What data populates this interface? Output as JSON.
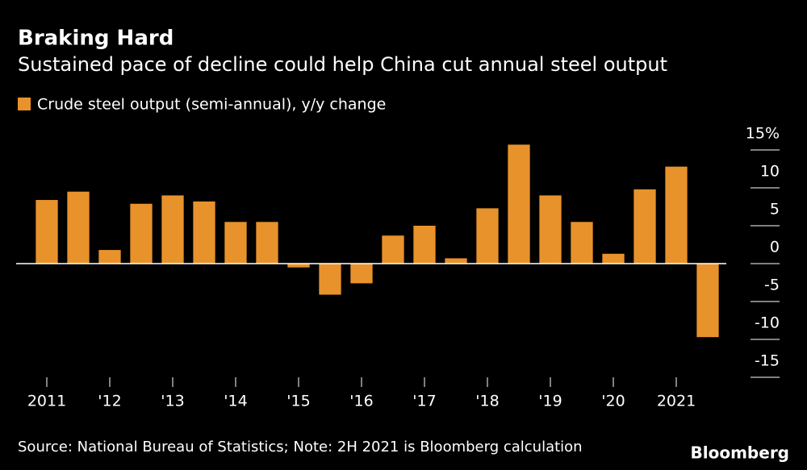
{
  "chart_data": {
    "type": "bar",
    "title": "Braking Hard",
    "subtitle": "Sustained pace of decline could help China cut annual steel output",
    "categories": [
      "2011",
      null,
      "'12",
      null,
      "'13",
      null,
      "'14",
      null,
      "'15",
      null,
      "'16",
      null,
      "'17",
      null,
      "'18",
      null,
      "'19",
      null,
      "'20",
      null,
      "2021",
      null
    ],
    "series": [
      {
        "name": "Crude steel output (semi-annual), y/y change",
        "color": "#e8922b",
        "values": [
          8.4,
          9.5,
          1.8,
          7.9,
          9.0,
          8.2,
          5.5,
          5.5,
          -0.5,
          -4.1,
          -2.6,
          3.7,
          5.0,
          0.7,
          7.3,
          15.7,
          9.0,
          5.5,
          1.3,
          9.8,
          12.8,
          -9.7
        ]
      }
    ],
    "ylim": [
      -15,
      15
    ],
    "yticks": [
      {
        "value": 15,
        "label": "15%"
      },
      10,
      5,
      0,
      -5,
      -10,
      -15
    ],
    "source": "Source: National Bureau of Statistics; Note: 2H 2021 is Bloomberg calculation",
    "brand": "Bloomberg"
  }
}
